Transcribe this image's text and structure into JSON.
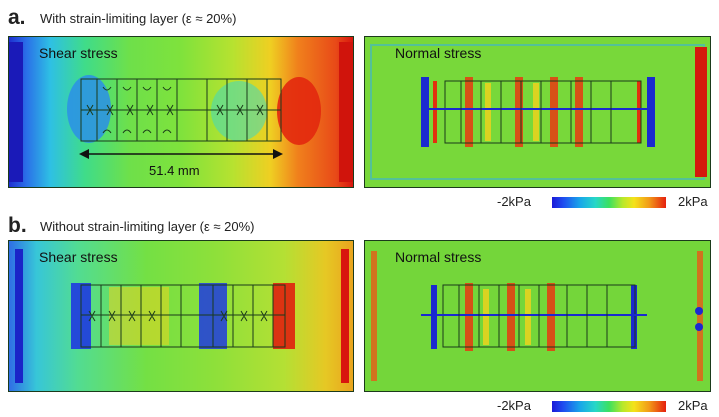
{
  "panel_a": {
    "letter": "a.",
    "title": "With  strain-limiting layer (ε ≈ 20%)",
    "shear_label": "Shear stress",
    "normal_label": "Normal stress",
    "dimension": "51.4 mm"
  },
  "panel_b": {
    "letter": "b.",
    "title": "Without strain-limiting layer (ε ≈ 20%)",
    "shear_label": "Shear stress",
    "normal_label": "Normal stress"
  },
  "colorbar": {
    "min_label": "-2kPa",
    "max_label": "2kPa",
    "colors": [
      "#1a1ad8",
      "#19a8e8",
      "#3be060",
      "#f4e21a",
      "#e5200e"
    ]
  }
}
